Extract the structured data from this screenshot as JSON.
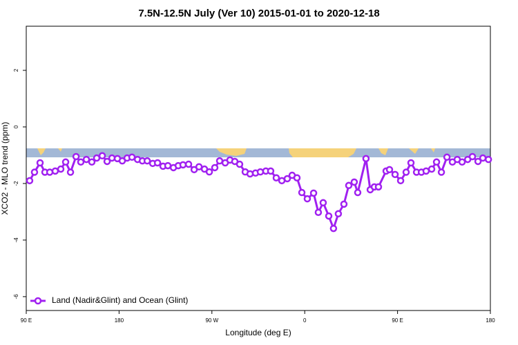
{
  "chart_data": {
    "type": "line",
    "title": "7.5N-12.5N July (Ver 10)   2015-01-01 to 2020-12-18",
    "x_label": "Longitude (deg E)",
    "y_label": "XCO2 - MLO trend (ppm)",
    "xlim": [
      90,
      540
    ],
    "ylim": [
      -6.49,
      3.56
    ],
    "xticks": [
      {
        "value": 90,
        "label": "90 E"
      },
      180,
      {
        "value": 270,
        "label": "90 W"
      },
      {
        "value": 360,
        "label": "0"
      },
      {
        "value": 450,
        "label": "90 E"
      },
      {
        "value": 540,
        "label": "180"
      }
    ],
    "yticks": [
      -6,
      -4,
      -2,
      0,
      2
    ],
    "legend": "bottom-left",
    "series": [
      {
        "name": "Land (Nadir&Glint) and Ocean (Glint)",
        "color": "#a020f0",
        "x": [
          93.3,
          98.0,
          103.4,
          108.1,
          112.8,
          118.1,
          123.5,
          128.2,
          132.9,
          138.3,
          142.9,
          148.3,
          153.6,
          158.3,
          163.7,
          168.4,
          173.1,
          178.4,
          183.1,
          187.8,
          192.5,
          197.9,
          202.6,
          207.3,
          212.6,
          217.3,
          222.6,
          227.3,
          232.7,
          237.4,
          242.0,
          247.4,
          252.8,
          257.5,
          262.8,
          267.5,
          272.8,
          277.5,
          282.9,
          287.5,
          292.2,
          296.9,
          302.3,
          307.0,
          312.3,
          317.0,
          322.3,
          327.0,
          332.4,
          337.8,
          343.1,
          347.8,
          352.5,
          357.2,
          362.5,
          368.6,
          373.2,
          377.9,
          383.3,
          387.9,
          392.6,
          398.0,
          402.7,
          408.0,
          411.4,
          419.4,
          423.5,
          427.5,
          431.5,
          438.9,
          442.2,
          447.6,
          453.0,
          458.3,
          463.0,
          468.4,
          473.1,
          477.7,
          483.1,
          487.8,
          492.5,
          497.9,
          503.2,
          507.9,
          512.6,
          518.0,
          522.6,
          528.0,
          532.7,
          538.1
        ],
        "values": [
          -1.9,
          -1.6,
          -1.27,
          -1.6,
          -1.6,
          -1.56,
          -1.49,
          -1.24,
          -1.6,
          -1.05,
          -1.24,
          -1.15,
          -1.24,
          -1.1,
          -1.02,
          -1.22,
          -1.1,
          -1.12,
          -1.2,
          -1.1,
          -1.07,
          -1.15,
          -1.2,
          -1.2,
          -1.29,
          -1.27,
          -1.39,
          -1.37,
          -1.44,
          -1.37,
          -1.34,
          -1.32,
          -1.51,
          -1.41,
          -1.49,
          -1.59,
          -1.44,
          -1.2,
          -1.27,
          -1.17,
          -1.22,
          -1.32,
          -1.59,
          -1.66,
          -1.63,
          -1.59,
          -1.56,
          -1.56,
          -1.8,
          -1.9,
          -1.83,
          -1.71,
          -1.8,
          -2.32,
          -2.54,
          -2.34,
          -3.02,
          -2.68,
          -3.15,
          -3.59,
          -3.07,
          -2.73,
          -2.07,
          -1.95,
          -2.32,
          -1.12,
          -2.22,
          -2.12,
          -2.12,
          -1.56,
          -1.51,
          -1.68,
          -1.9,
          -1.6,
          -1.27,
          -1.6,
          -1.6,
          -1.56,
          -1.49,
          -1.24,
          -1.6,
          -1.07,
          -1.24,
          -1.15,
          -1.24,
          -1.15,
          -1.05,
          -1.22,
          -1.1,
          -1.15
        ]
      }
    ]
  }
}
